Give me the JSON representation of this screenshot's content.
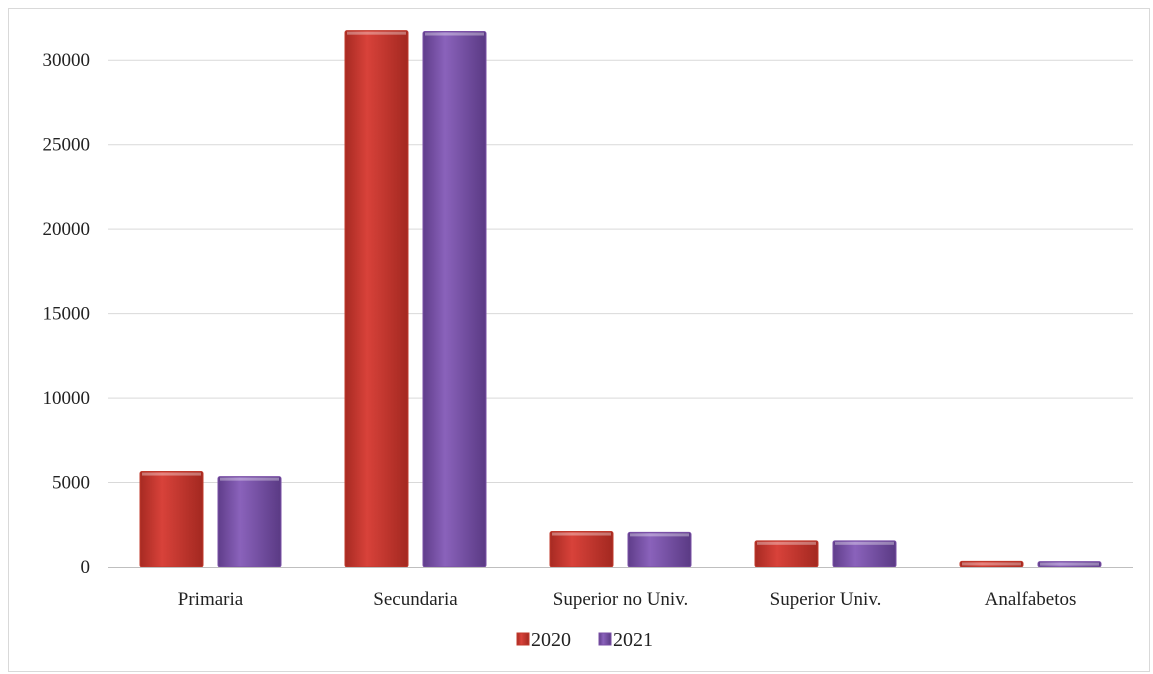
{
  "chart_data": {
    "type": "bar",
    "categories": [
      "Primaria",
      "Secundaria",
      "Superior no Univ.",
      "Superior Univ.",
      "Analfabetos"
    ],
    "series": [
      {
        "name": "2020",
        "color": "#c0392b",
        "values": [
          5650,
          31750,
          2100,
          1550,
          330
        ]
      },
      {
        "name": "2021",
        "color": "#7a4fa6",
        "values": [
          5350,
          31700,
          2050,
          1550,
          320
        ]
      }
    ],
    "yticks": [
      "0",
      "5000",
      "10000",
      "15000",
      "20000",
      "25000",
      "30000"
    ],
    "ylim": [
      0,
      32500
    ],
    "grid": true,
    "legend_position": "bottom"
  }
}
